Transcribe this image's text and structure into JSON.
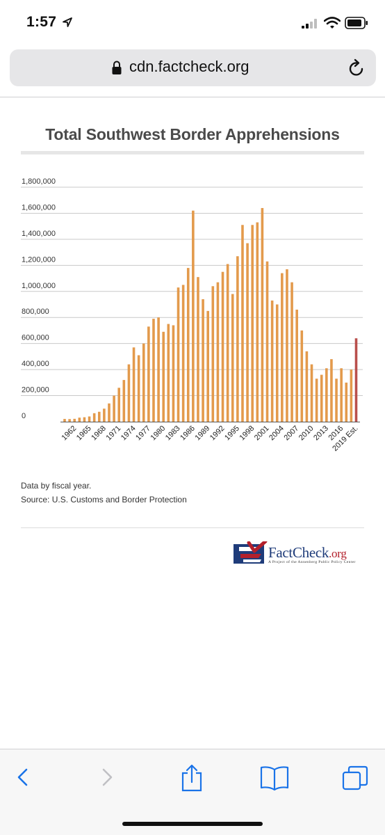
{
  "status_bar": {
    "time": "1:57"
  },
  "browser": {
    "url": "cdn.factcheck.org"
  },
  "chart_data": {
    "type": "bar",
    "title": "Total Southwest Border Apprehensions",
    "xlabel": "",
    "ylabel": "",
    "ylim": [
      0,
      1800000
    ],
    "y_ticks": [
      0,
      200000,
      400000,
      600000,
      800000,
      1000000,
      1200000,
      1400000,
      1600000,
      1800000
    ],
    "y_tick_labels": [
      "0",
      "200,000",
      "400,000",
      "600,000",
      "800,000",
      "1,000,000",
      "1,200,000",
      "1,400,000",
      "1,600,000",
      "1,800,000"
    ],
    "x_tick_labels": [
      "1962",
      "1965",
      "1968",
      "1971",
      "1974",
      "1977",
      "1980",
      "1983",
      "1986",
      "1989",
      "1992",
      "1995",
      "1998",
      "2001",
      "2004",
      "2007",
      "2010",
      "2013",
      "2016",
      "2019 Est."
    ],
    "grid": true,
    "categories": [
      "1960",
      "1961",
      "1962",
      "1963",
      "1964",
      "1965",
      "1966",
      "1967",
      "1968",
      "1969",
      "1970",
      "1971",
      "1972",
      "1973",
      "1974",
      "1975",
      "1976",
      "1977",
      "1978",
      "1979",
      "1980",
      "1981",
      "1982",
      "1983",
      "1984",
      "1985",
      "1986",
      "1987",
      "1988",
      "1989",
      "1990",
      "1991",
      "1992",
      "1993",
      "1994",
      "1995",
      "1996",
      "1997",
      "1998",
      "1999",
      "2000",
      "2001",
      "2002",
      "2003",
      "2004",
      "2005",
      "2006",
      "2007",
      "2008",
      "2009",
      "2010",
      "2011",
      "2012",
      "2013",
      "2014",
      "2015",
      "2016",
      "2017",
      "2018",
      "2019 Est."
    ],
    "values": [
      21000,
      20000,
      22000,
      31000,
      34000,
      40000,
      65000,
      76000,
      100000,
      140000,
      200000,
      260000,
      320000,
      440000,
      570000,
      510000,
      600000,
      730000,
      790000,
      800000,
      690000,
      750000,
      740000,
      1030000,
      1050000,
      1180000,
      1620000,
      1110000,
      940000,
      850000,
      1040000,
      1070000,
      1150000,
      1210000,
      980000,
      1270000,
      1510000,
      1370000,
      1510000,
      1530000,
      1640000,
      1230000,
      930000,
      900000,
      1140000,
      1170000,
      1070000,
      860000,
      700000,
      540000,
      440000,
      330000,
      360000,
      410000,
      480000,
      330000,
      410000,
      300000,
      400000,
      640000
    ],
    "colors": {
      "bar": "#e39a4c",
      "estimate": "#b94f4c",
      "grid": "#c9c9c9",
      "baseline": "#555555"
    }
  },
  "notes": {
    "line1": "Data by fiscal year.",
    "line2": "Source: U.S. Customs and Border Protection"
  },
  "logo": {
    "word_main": "FactCheck",
    "word_suffix": ".org",
    "tagline": "A Project of the Annenberg Public Policy Center"
  },
  "toolbar": {
    "icons": [
      "back-icon",
      "forward-icon",
      "share-icon",
      "bookmarks-icon",
      "tabs-icon"
    ]
  }
}
